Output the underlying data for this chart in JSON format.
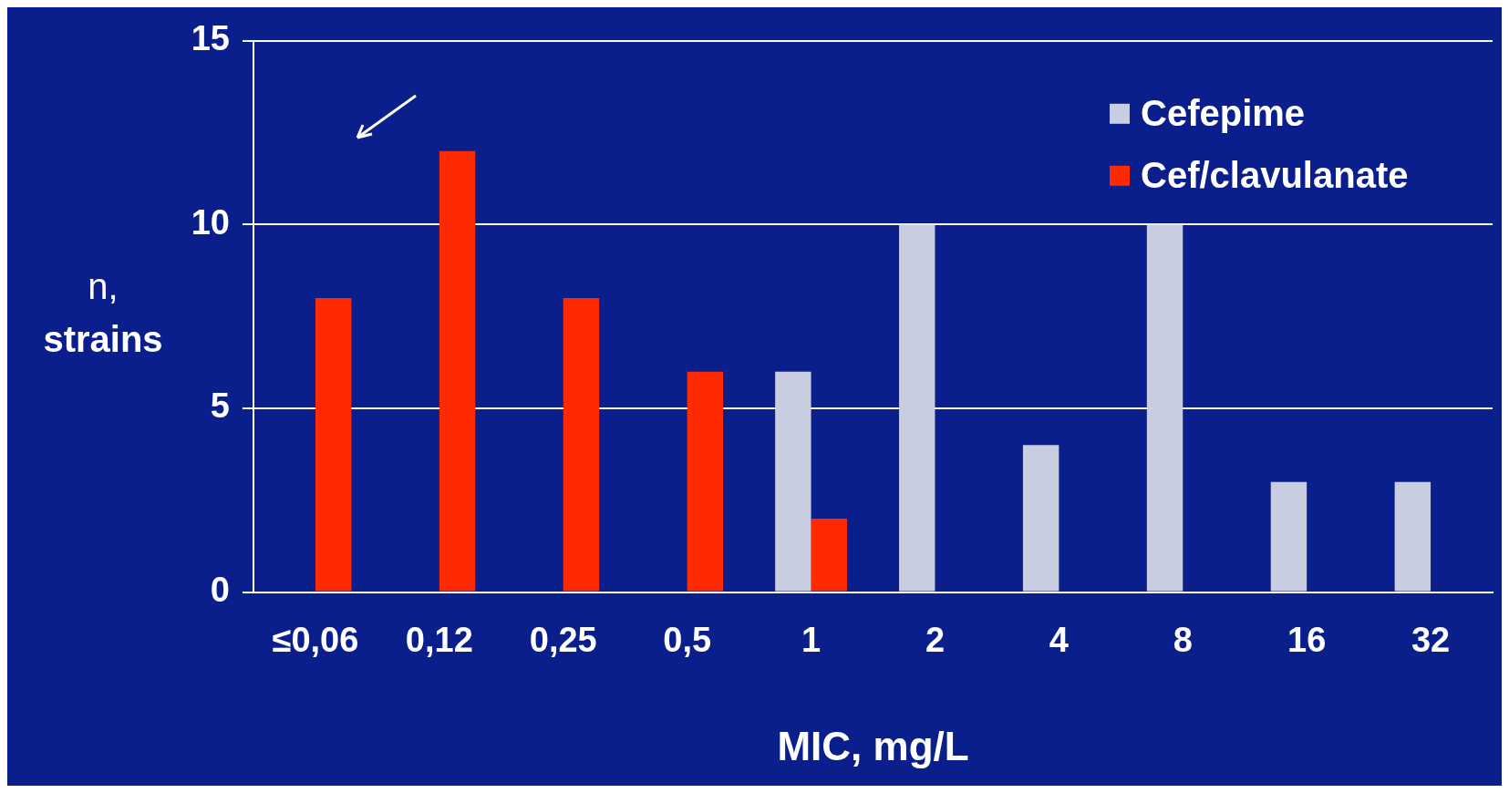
{
  "chart_data": {
    "type": "bar",
    "xlabel": "MIC, mg/L",
    "ylabel": "n,\nstrains",
    "categories": [
      "≤0,06",
      "0,12",
      "0,25",
      "0,5",
      "1",
      "2",
      "4",
      "8",
      "16",
      "32"
    ],
    "series": [
      {
        "name": "Cefepime",
        "color": "#c9cde2",
        "values": [
          null,
          null,
          null,
          null,
          6,
          10,
          4,
          10,
          3,
          3
        ]
      },
      {
        "name": "Cef/clavulanate",
        "color": "#ff2a00",
        "values": [
          8,
          12,
          8,
          6,
          2,
          null,
          null,
          null,
          null,
          null
        ]
      }
    ],
    "ylim": [
      0,
      15
    ],
    "yticks": [
      0,
      5,
      10,
      15
    ],
    "grid": "y",
    "legend": "top right"
  }
}
